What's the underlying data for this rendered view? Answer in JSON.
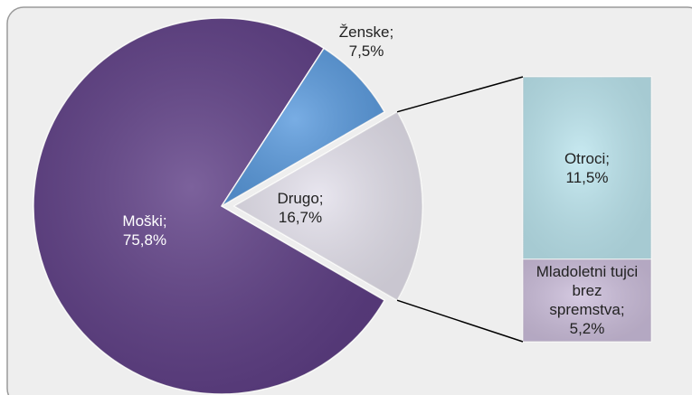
{
  "chart_data": {
    "type": "pie-of-bar",
    "categories": [
      "Moški",
      "Ženske",
      "Drugo"
    ],
    "values": [
      75.8,
      7.5,
      16.7
    ],
    "value_labels": [
      "75,8%",
      "7,5%",
      "16,7%"
    ],
    "colors": [
      "#5f3f86",
      "#5b9bde",
      "#e4e1ec"
    ],
    "label_separator": ";",
    "breakdown": {
      "categories": [
        "Otroci",
        "Mladoletni tujci brez spremstva"
      ],
      "values": [
        11.5,
        5.2
      ],
      "value_labels": [
        "11,5%",
        "5,2%"
      ],
      "colors": [
        "#bde6ef",
        "#cdbfdc"
      ]
    }
  }
}
